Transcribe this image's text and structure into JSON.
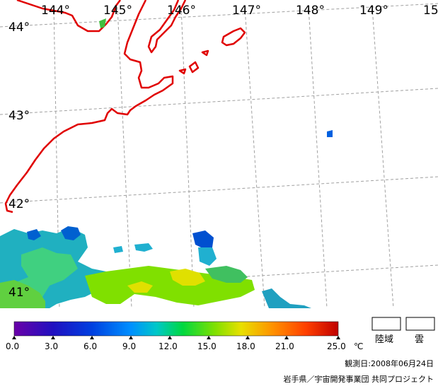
{
  "map": {
    "longitude_labels": [
      "144°",
      "145°",
      "146°",
      "147°",
      "148°",
      "149°",
      "15"
    ],
    "latitude_labels": [
      "44°",
      "43°",
      "42°",
      "41°"
    ]
  },
  "colorbar": {
    "ticks": [
      "0.0",
      "3.0",
      "6.0",
      "9.0",
      "12.0",
      "15.0",
      "18.0",
      "21.0",
      "25.0"
    ],
    "unit": "℃",
    "colors": [
      "#6a00a8",
      "#2010c0",
      "#0040e0",
      "#0090ff",
      "#00c8c8",
      "#00d840",
      "#80e000",
      "#e8e000",
      "#ff9000",
      "#ff4000",
      "#c00000"
    ]
  },
  "legend": {
    "land_label": "陸域",
    "cloud_label": "雲"
  },
  "observation_date": "観測日:2008年06月24日",
  "credit": "岩手県／宇宙開発事業団  共同プロジェクト",
  "coastline_color": "#e00000",
  "grid_color": "#a0a0a0"
}
